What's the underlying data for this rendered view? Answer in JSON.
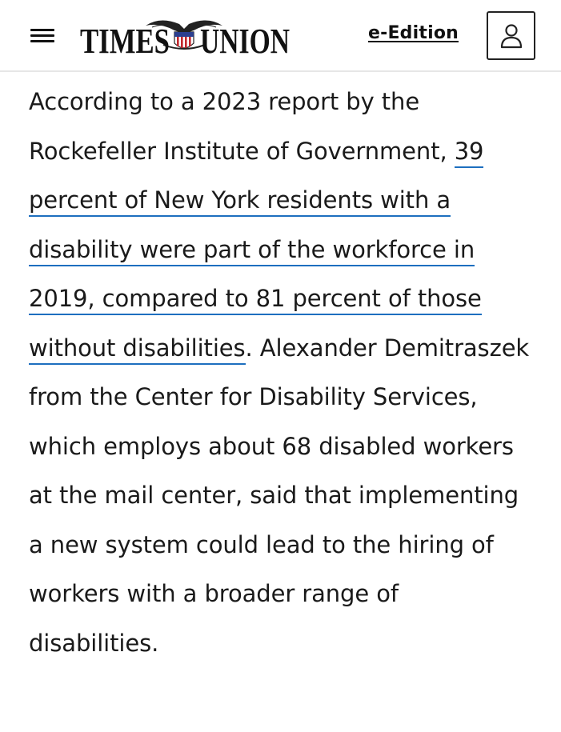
{
  "header": {
    "menu_icon": "hamburger-menu-icon",
    "logo_text_left": "TIMES",
    "logo_text_right": "UNION",
    "edition_link": "e-Edition",
    "account_icon": "user-icon"
  },
  "article": {
    "text_before_link": "According to a 2023 report by the Rockefeller Institute of Government, ",
    "link_text": "39 percent of New York residents with a disability were part of the workforce in 2019, compared to 81 percent of those without disabilities",
    "text_after_link": ". Alexander Demitraszek from the Center for Disability Services, which employs about 68 disabled workers at the mail center, said that implementing a new system could lead to the hiring of workers with a broader range of disabilities."
  },
  "colors": {
    "link_underline": "#1d6fbf",
    "text": "#1a1a1a",
    "header_border": "#e6e6e6"
  }
}
